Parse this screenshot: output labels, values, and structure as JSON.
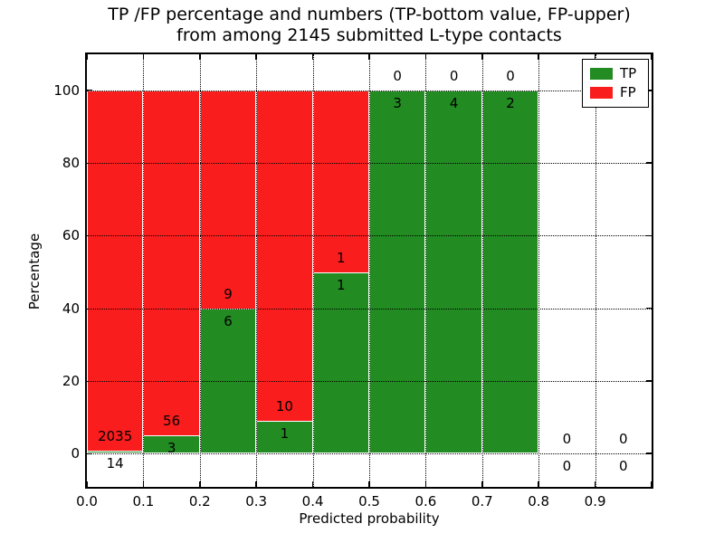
{
  "figure": {
    "title_line1": "TP /FP percentage and numbers (TP-bottom value, FP-upper)",
    "title_line2": "from among 2145 submitted L-type contacts",
    "xlabel": "Predicted probability",
    "ylabel": "Percentage"
  },
  "colors": {
    "tp": "#228b22",
    "fp": "#fa1d1d",
    "bar_edge": "#ffffff",
    "grid": "#000000",
    "background": "#ffffff",
    "text": "#000000"
  },
  "chart_data": {
    "type": "bar",
    "stacked": true,
    "units": "percent",
    "title": "TP /FP percentage and numbers (TP-bottom value, FP-upper) from among 2145 submitted L-type contacts",
    "xlabel": "Predicted probability",
    "ylabel": "Percentage",
    "total_submitted": 2145,
    "xlim": [
      0.0,
      1.0
    ],
    "ylim": [
      -9.3,
      110.2
    ],
    "grid": true,
    "grid_style": "dotted",
    "x_ticks": [
      "0.0",
      "0.1",
      "0.2",
      "0.3",
      "0.4",
      "0.5",
      "0.6",
      "0.7",
      "0.8",
      "0.9"
    ],
    "y_ticks": [
      "0",
      "20",
      "40",
      "60",
      "80",
      "100"
    ],
    "y_tick_values": [
      0,
      20,
      40,
      60,
      80,
      100
    ],
    "legend": {
      "position": "upper right",
      "entries": [
        {
          "label": "TP",
          "color": "#228b22"
        },
        {
          "label": "FP",
          "color": "#fa1d1d"
        }
      ]
    },
    "annotation_rule": "TP count below segment boundary, FP count above",
    "bins": [
      {
        "x_start": 0.0,
        "x_end": 0.1,
        "tp": 14,
        "fp": 2035,
        "tp_pct": 0.68,
        "fp_pct": 99.32
      },
      {
        "x_start": 0.1,
        "x_end": 0.2,
        "tp": 3,
        "fp": 56,
        "tp_pct": 5.08,
        "fp_pct": 94.92
      },
      {
        "x_start": 0.2,
        "x_end": 0.3,
        "tp": 6,
        "fp": 9,
        "tp_pct": 40.0,
        "fp_pct": 60.0
      },
      {
        "x_start": 0.3,
        "x_end": 0.4,
        "tp": 1,
        "fp": 10,
        "tp_pct": 9.09,
        "fp_pct": 90.91
      },
      {
        "x_start": 0.4,
        "x_end": 0.5,
        "tp": 1,
        "fp": 1,
        "tp_pct": 50.0,
        "fp_pct": 50.0
      },
      {
        "x_start": 0.5,
        "x_end": 0.6,
        "tp": 3,
        "fp": 0,
        "tp_pct": 100.0,
        "fp_pct": 0.0
      },
      {
        "x_start": 0.6,
        "x_end": 0.7,
        "tp": 4,
        "fp": 0,
        "tp_pct": 100.0,
        "fp_pct": 0.0
      },
      {
        "x_start": 0.7,
        "x_end": 0.8,
        "tp": 2,
        "fp": 0,
        "tp_pct": 100.0,
        "fp_pct": 0.0
      },
      {
        "x_start": 0.8,
        "x_end": 0.9,
        "tp": 0,
        "fp": 0,
        "tp_pct": null,
        "fp_pct": null
      },
      {
        "x_start": 0.9,
        "x_end": 1.0,
        "tp": 0,
        "fp": 0,
        "tp_pct": null,
        "fp_pct": null
      }
    ]
  }
}
